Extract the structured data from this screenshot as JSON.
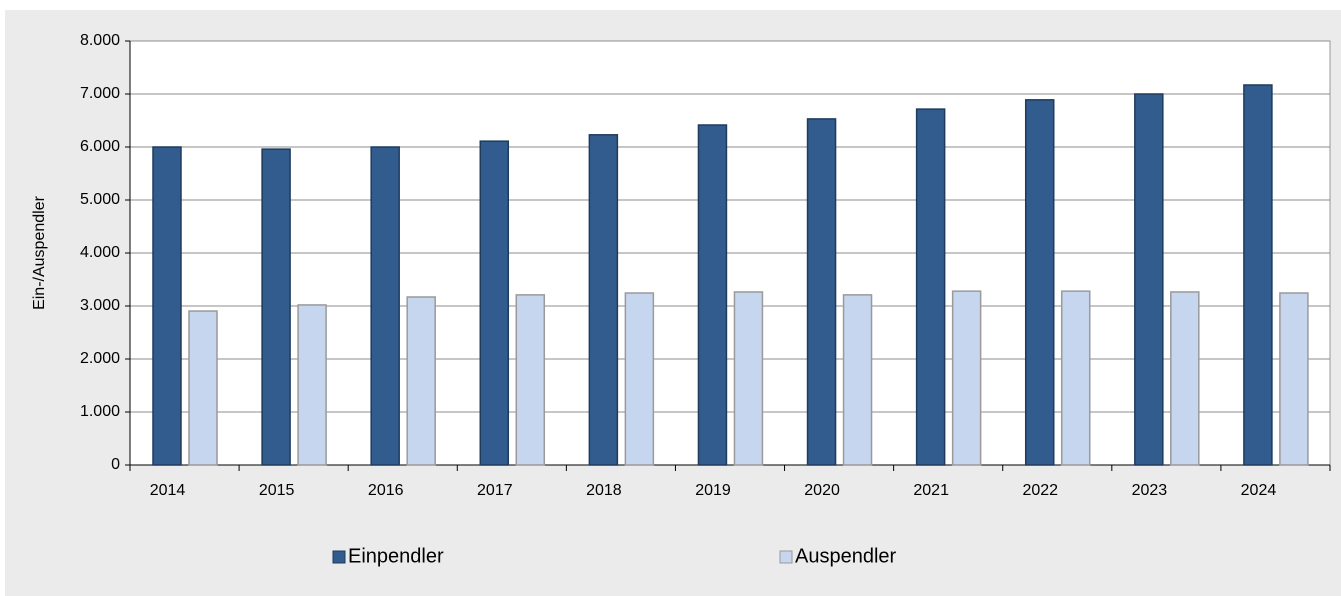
{
  "chart_data": {
    "type": "bar",
    "ylabel": "Ein-/Auspendler",
    "categories": [
      "2014",
      "2015",
      "2016",
      "2017",
      "2018",
      "2019",
      "2020",
      "2021",
      "2022",
      "2023",
      "2024"
    ],
    "series": [
      {
        "name": "Einpendler",
        "color": "#335c8e",
        "values": [
          6000,
          5960,
          6000,
          6110,
          6230,
          6415,
          6530,
          6715,
          6890,
          7000,
          7170
        ]
      },
      {
        "name": "Auspendler",
        "color": "#c6d6ee",
        "values": [
          2905,
          3020,
          3170,
          3210,
          3245,
          3265,
          3210,
          3280,
          3280,
          3265,
          3245
        ]
      }
    ],
    "ylim": [
      0,
      8000
    ],
    "yticks": [
      0,
      {
        "value": 1000,
        "label": "1.000"
      },
      {
        "value": 2000,
        "label": "2.000"
      },
      {
        "value": 3000,
        "label": "3.000"
      },
      {
        "value": 4000,
        "label": "4.000"
      },
      {
        "value": 5000,
        "label": "5.000"
      },
      {
        "value": 6000,
        "label": "6.000"
      },
      {
        "value": 7000,
        "label": "7.000"
      },
      {
        "value": 8000,
        "label": "8.000"
      }
    ],
    "grid": true,
    "legend": "bottom"
  }
}
